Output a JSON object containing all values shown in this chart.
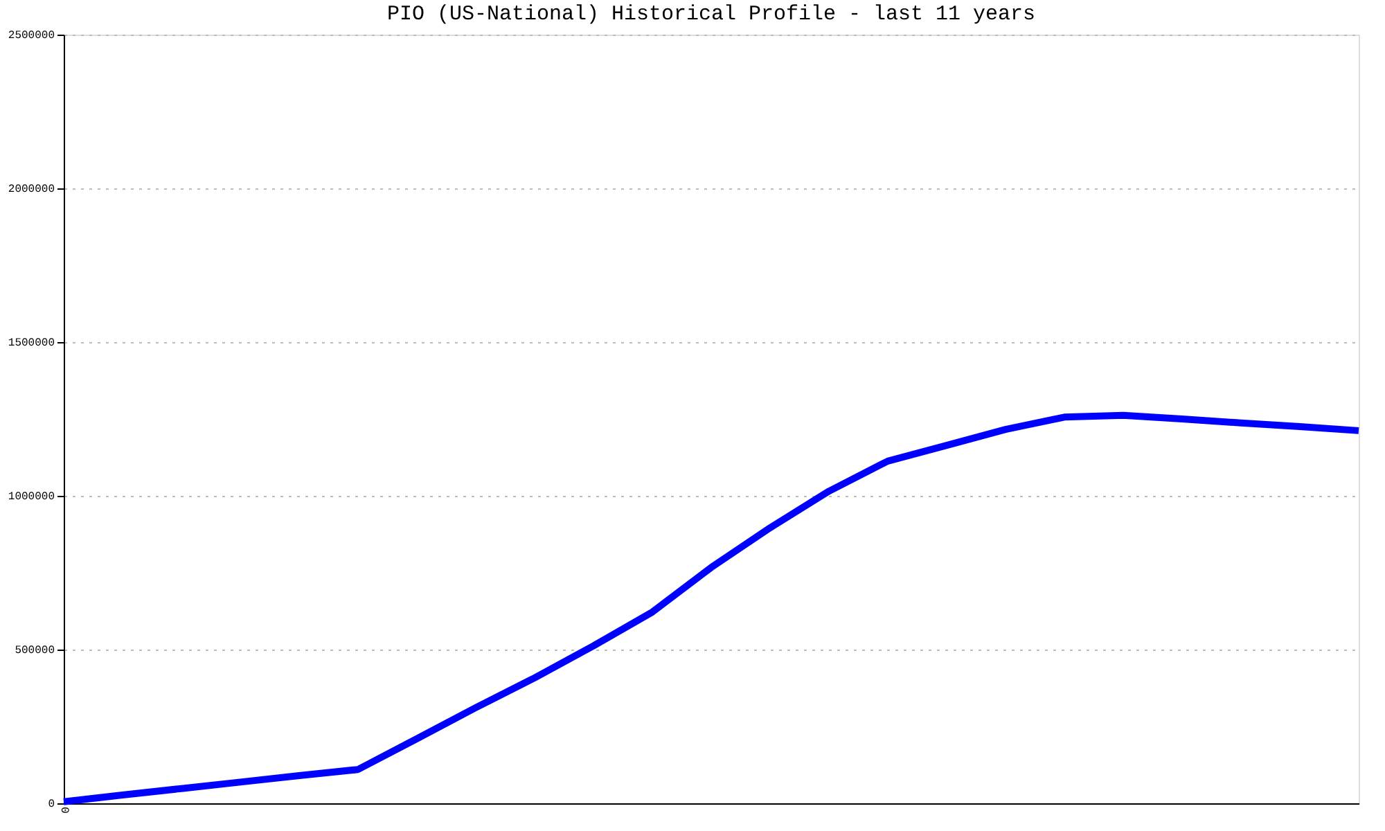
{
  "chart_data": {
    "type": "line",
    "title": "PIO (US-National) Historical Profile - last 11 years",
    "categories": [
      "0",
      null,
      null,
      null,
      null,
      null,
      null,
      null,
      null,
      null,
      null,
      null,
      null,
      null,
      null,
      null,
      null,
      null,
      null,
      null,
      null,
      null,
      null
    ],
    "series": [
      {
        "color": "#0000ff",
        "values": [
          5000,
          27000,
          48000,
          69000,
          90000,
          110000,
          210000,
          311000,
          408000,
          512000,
          622000,
          767000,
          896000,
          1015000,
          1113000,
          1164000,
          1216000,
          1256000,
          1262000,
          1250000,
          1237000,
          1225000,
          1212000
        ]
      }
    ],
    "ylim": [
      0,
      2500000
    ],
    "yticks": [
      0,
      500000,
      1000000,
      1500000,
      2000000,
      2500000
    ],
    "grid": "y",
    "marker": "none",
    "line_style": "solid"
  }
}
